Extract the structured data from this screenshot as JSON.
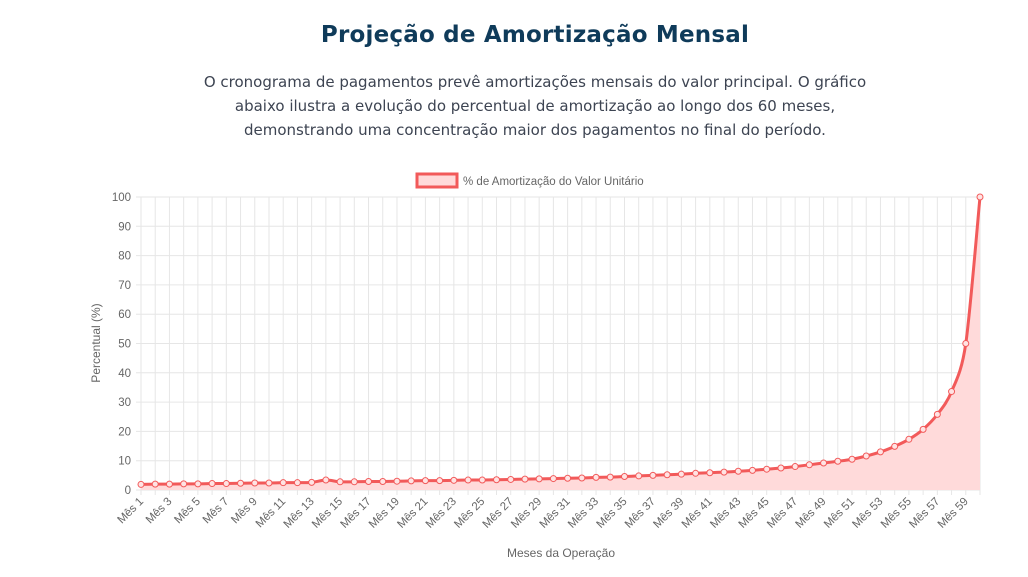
{
  "page": {
    "title": "Projeção de Amortização Mensal",
    "description_lines": [
      "O cronograma de pagamentos prevê amortizações mensais do valor principal. O gráfico",
      "abaixo ilustra a evolução do percentual de amortização ao longo dos 60 meses,",
      "demonstrando uma concentração maior dos pagamentos no final do período."
    ]
  },
  "chart_data": {
    "type": "line",
    "fill": true,
    "categories": [
      "Mês 1",
      "Mês 2",
      "Mês 3",
      "Mês 4",
      "Mês 5",
      "Mês 6",
      "Mês 7",
      "Mês 8",
      "Mês 9",
      "Mês 10",
      "Mês 11",
      "Mês 12",
      "Mês 13",
      "Mês 14",
      "Mês 15",
      "Mês 16",
      "Mês 17",
      "Mês 18",
      "Mês 19",
      "Mês 20",
      "Mês 21",
      "Mês 22",
      "Mês 23",
      "Mês 24",
      "Mês 25",
      "Mês 26",
      "Mês 27",
      "Mês 28",
      "Mês 29",
      "Mês 30",
      "Mês 31",
      "Mês 32",
      "Mês 33",
      "Mês 34",
      "Mês 35",
      "Mês 36",
      "Mês 37",
      "Mês 38",
      "Mês 39",
      "Mês 40",
      "Mês 41",
      "Mês 42",
      "Mês 43",
      "Mês 44",
      "Mês 45",
      "Mês 46",
      "Mês 47",
      "Mês 48",
      "Mês 49",
      "Mês 50",
      "Mês 51",
      "Mês 52",
      "Mês 53",
      "Mês 54",
      "Mês 55",
      "Mês 56",
      "Mês 57",
      "Mês 58",
      "Mês 59",
      "Mês 60"
    ],
    "visible_tick_labels": [
      "Mês 1",
      "Mês 3",
      "Mês 5",
      "Mês 7",
      "Mês 9",
      "Mês 11",
      "Mês 13",
      "Mês 15",
      "Mês 17",
      "Mês 19",
      "Mês 21",
      "Mês 23",
      "Mês 25",
      "Mês 27",
      "Mês 29",
      "Mês 31",
      "Mês 33",
      "Mês 35",
      "Mês 37",
      "Mês 39",
      "Mês 41",
      "Mês 43",
      "Mês 45",
      "Mês 47",
      "Mês 49",
      "Mês 51",
      "Mês 53",
      "Mês 55",
      "Mês 57",
      "Mês 59"
    ],
    "series": [
      {
        "name": "% de Amortização do Valor Unitário",
        "color": "#ff6384",
        "stroke_color": "#f25a5a",
        "fill_color": "#ffdada",
        "values": [
          1.9,
          2.0,
          2.0,
          2.1,
          2.1,
          2.2,
          2.2,
          2.3,
          2.4,
          2.4,
          2.5,
          2.5,
          2.6,
          3.4,
          2.8,
          2.8,
          2.9,
          2.9,
          3.0,
          3.1,
          3.2,
          3.2,
          3.3,
          3.4,
          3.4,
          3.5,
          3.6,
          3.7,
          3.8,
          3.9,
          4.0,
          4.1,
          4.3,
          4.4,
          4.6,
          4.8,
          5.0,
          5.2,
          5.4,
          5.7,
          5.9,
          6.1,
          6.4,
          6.7,
          7.1,
          7.5,
          8.0,
          8.6,
          9.2,
          9.8,
          10.5,
          11.6,
          13.0,
          14.9,
          17.3,
          20.7,
          25.8,
          33.6,
          50.0,
          100.0
        ]
      }
    ],
    "xlabel": "Meses da Operação",
    "ylabel": "Percentual (%)",
    "ylim": [
      0,
      100
    ],
    "yticks": [
      0,
      10,
      20,
      30,
      40,
      50,
      60,
      70,
      80,
      90,
      100
    ],
    "grid": true,
    "legend": "top-center"
  }
}
